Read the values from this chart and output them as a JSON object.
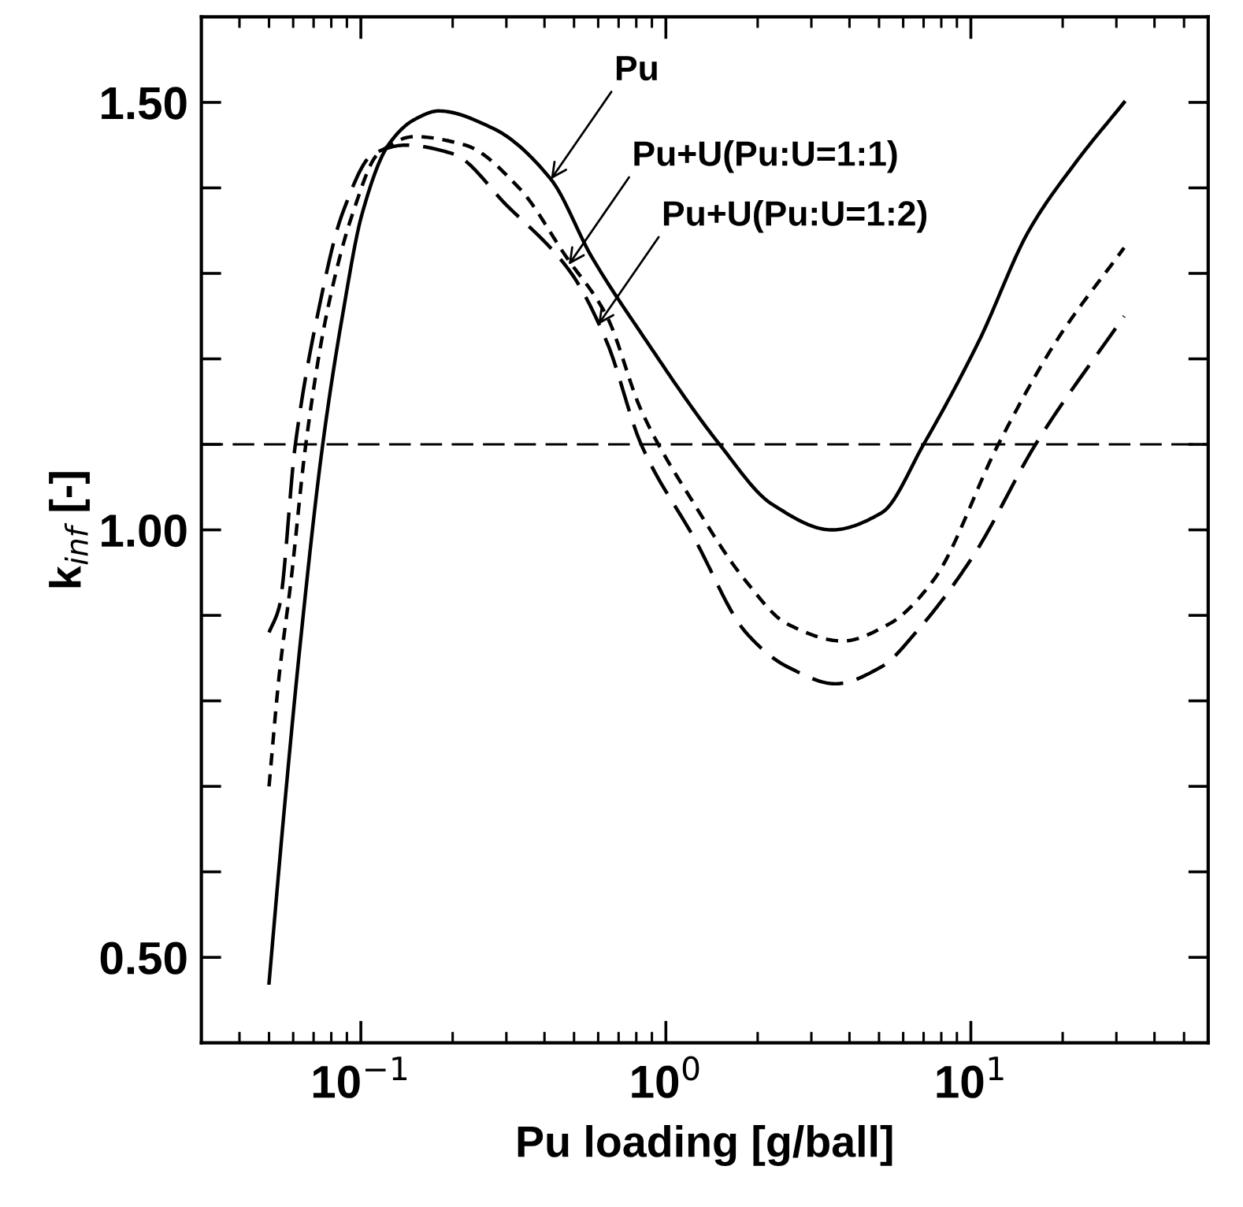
{
  "chart_data": {
    "type": "line",
    "xlabel": "Pu loading [g/ball]",
    "ylabel": "k$_{inf}$ [-]",
    "log": "x",
    "xlim": [
      0.03,
      60
    ],
    "ylim": [
      0.4,
      1.6
    ],
    "xticks": [
      {
        "value": 0.04,
        "label": null
      },
      {
        "value": 0.05,
        "label": null
      },
      {
        "value": 0.06,
        "label": null
      },
      {
        "value": 0.07,
        "label": null
      },
      {
        "value": 0.08,
        "label": null
      },
      {
        "value": 0.09,
        "label": null
      },
      {
        "value": 0.1,
        "label": "10$^{−1}$"
      },
      {
        "value": 0.2,
        "label": null
      },
      {
        "value": 0.3,
        "label": null
      },
      {
        "value": 0.4,
        "label": null
      },
      {
        "value": 0.5,
        "label": null
      },
      {
        "value": 0.6,
        "label": null
      },
      {
        "value": 0.7,
        "label": null
      },
      {
        "value": 0.8,
        "label": null
      },
      {
        "value": 0.9,
        "label": null
      },
      {
        "value": 1,
        "label": "10$^{0}$"
      },
      {
        "value": 2,
        "label": null
      },
      {
        "value": 3,
        "label": null
      },
      {
        "value": 4,
        "label": null
      },
      {
        "value": 5,
        "label": null
      },
      {
        "value": 6,
        "label": null
      },
      {
        "value": 7,
        "label": null
      },
      {
        "value": 8,
        "label": null
      },
      {
        "value": 9,
        "label": null
      },
      {
        "value": 10,
        "label": "10$^{1}$"
      },
      {
        "value": 20,
        "label": null
      },
      {
        "value": 30,
        "label": null
      },
      {
        "value": 40,
        "label": null
      },
      {
        "value": 50,
        "label": null
      }
    ],
    "yticks": [
      {
        "value": 0.5,
        "label": "0.50"
      },
      {
        "value": 0.6,
        "label": null
      },
      {
        "value": 0.7,
        "label": null
      },
      {
        "value": 0.8,
        "label": null
      },
      {
        "value": 0.9,
        "label": null
      },
      {
        "value": 1.0,
        "label": "1.00"
      },
      {
        "value": 1.1,
        "label": null
      },
      {
        "value": 1.2,
        "label": null
      },
      {
        "value": 1.3,
        "label": null
      },
      {
        "value": 1.4,
        "label": null
      },
      {
        "value": 1.5,
        "label": "1.50"
      }
    ],
    "grid": false,
    "legend": false,
    "series": [
      {
        "color": "#000000",
        "line_style": "solid",
        "x": [
          0.05,
          0.056,
          0.063,
          0.075,
          0.087,
          0.101,
          0.123,
          0.15,
          0.18,
          0.27,
          0.42,
          0.57,
          0.83,
          1.5,
          2.23,
          3.5,
          5.1,
          7.0,
          10.6,
          15.5,
          22.1,
          31.8
        ],
        "values": [
          0.47,
          0.67,
          0.86,
          1.1,
          1.25,
          1.37,
          1.45,
          1.48,
          1.49,
          1.47,
          1.41,
          1.32,
          1.23,
          1.1,
          1.03,
          1.0,
          1.02,
          1.1,
          1.22,
          1.35,
          1.43,
          1.5
        ]
      },
      {
        "color": "#000000",
        "line_style": "dotted",
        "x": [
          0.05,
          0.054,
          0.059,
          0.066,
          0.077,
          0.094,
          0.114,
          0.15,
          0.22,
          0.33,
          0.47,
          0.64,
          0.83,
          1.24,
          1.83,
          2.5,
          3.8,
          5.4,
          7.5,
          12.3,
          19,
          31.8
        ],
        "values": [
          0.7,
          0.83,
          0.94,
          1.1,
          1.25,
          1.37,
          1.44,
          1.46,
          1.45,
          1.4,
          1.32,
          1.25,
          1.14,
          1.03,
          0.94,
          0.89,
          0.87,
          0.89,
          0.94,
          1.1,
          1.22,
          1.33
        ]
      },
      {
        "color": "#000000",
        "line_style": "dashed",
        "x": [
          0.05,
          0.054,
          0.061,
          0.072,
          0.087,
          0.11,
          0.14,
          0.2,
          0.3,
          0.49,
          0.64,
          0.83,
          1.24,
          1.83,
          2.5,
          3.6,
          5.1,
          6.6,
          10.2,
          16.3,
          31.8
        ],
        "values": [
          0.88,
          0.91,
          1.1,
          1.25,
          1.37,
          1.44,
          1.45,
          1.44,
          1.38,
          1.3,
          1.22,
          1.1,
          0.99,
          0.88,
          0.84,
          0.82,
          0.84,
          0.88,
          0.97,
          1.1,
          1.25
        ]
      }
    ],
    "ref_lines": [
      {
        "axis": "y",
        "value": 1.1,
        "color": "#000000",
        "line_style": "dashed"
      }
    ],
    "annotations": [
      {
        "text": "Pu",
        "x": 0.42,
        "y": 1.41
      },
      {
        "text": "Pu+U(Pu:U=1:1)",
        "x": 0.48,
        "y": 1.31
      },
      {
        "text": "Pu+U(Pu:U=1:2)",
        "x": 0.6,
        "y": 1.24
      }
    ]
  }
}
